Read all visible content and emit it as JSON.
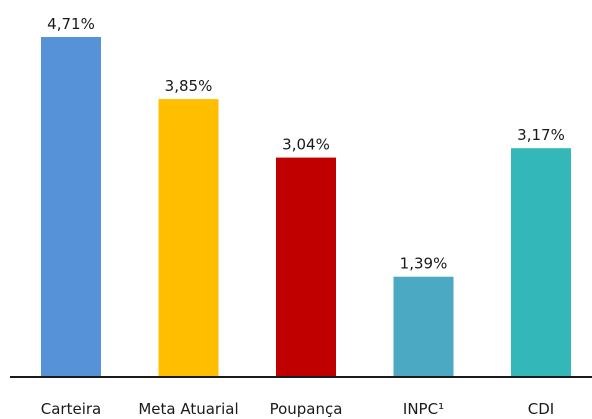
{
  "chart_data": {
    "type": "bar",
    "categories": [
      "Carteira",
      "Meta Atuarial",
      "Poupança",
      "INPC¹",
      "CDI"
    ],
    "values": [
      4.71,
      3.85,
      3.04,
      1.39,
      3.17
    ],
    "value_labels": [
      "4,71%",
      "3,85%",
      "3,04%",
      "1,39%",
      "3,17%"
    ],
    "colors": [
      "#5592D8",
      "#FFBF00",
      "#C00000",
      "#4BA9C3",
      "#34B7B9"
    ],
    "axis_color": "#1a1a1a",
    "title": "",
    "xlabel": "",
    "ylabel": "",
    "ylim": [
      0,
      5
    ],
    "grid": false,
    "legend": "none"
  }
}
